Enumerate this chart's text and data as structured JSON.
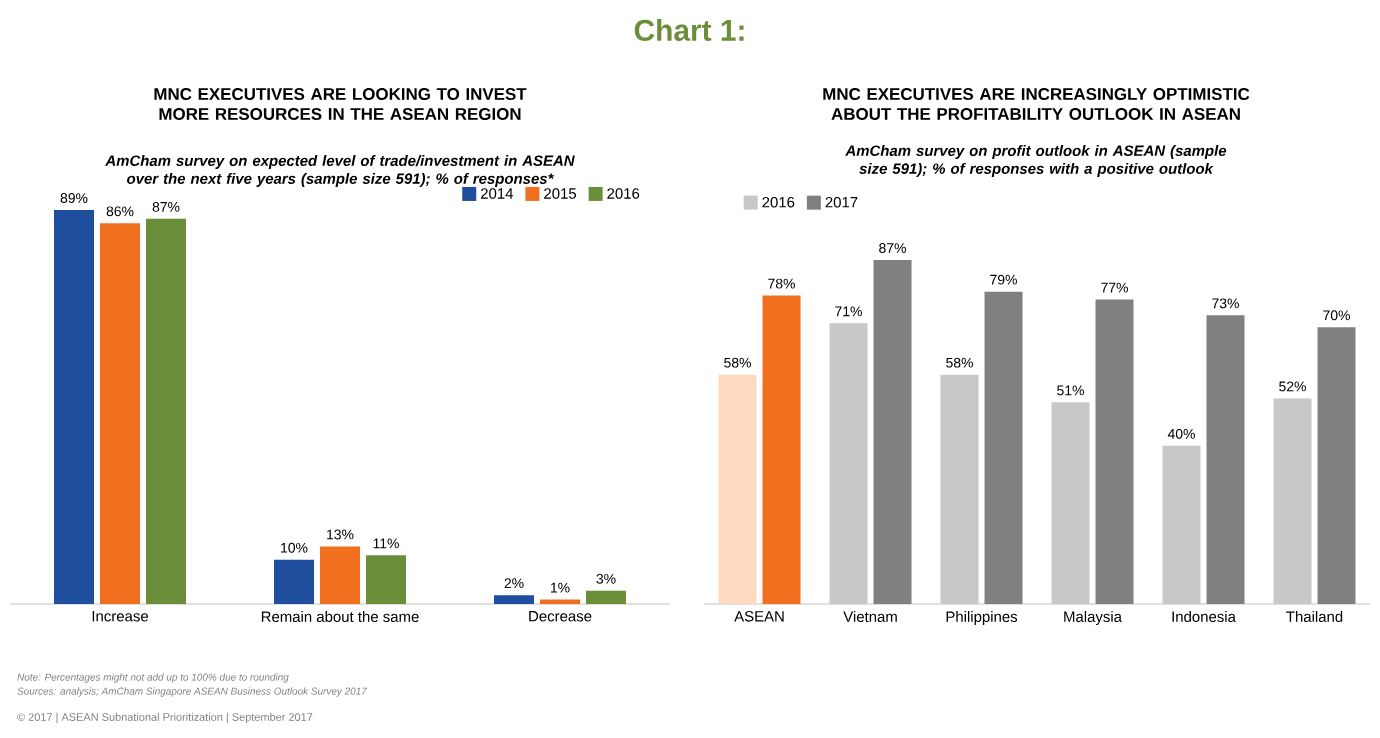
{
  "chart_data": [
    {
      "type": "bar",
      "title": "MNC EXECUTIVES ARE LOOKING TO INVEST MORE RESOURCES IN THE ASEAN REGION",
      "subtitle": "AmCham survey on expected level of trade/investment in ASEAN over the next five years (sample size 591); % of responses*",
      "categories": [
        "Increase",
        "Remain about the same",
        "Decrease"
      ],
      "series": [
        {
          "name": "2014",
          "color": "#1f4e9e",
          "values": [
            89,
            10,
            2
          ],
          "value_labels": [
            "89%",
            "10%",
            "2%"
          ]
        },
        {
          "name": "2015",
          "color": "#f07020",
          "values": [
            86,
            13,
            1
          ],
          "value_labels": [
            "86%",
            "13%",
            "1%"
          ]
        },
        {
          "name": "2016",
          "color": "#6b8e3a",
          "values": [
            87,
            11,
            3
          ],
          "value_labels": [
            "87%",
            "11%",
            "3%"
          ]
        }
      ],
      "legend": "top right",
      "annotations": [
        "Chart 1:",
        "Note: Percentages might not add up to 100% due to rounding",
        "Sources: analysis; AmCham Singapore ASEAN Business Outlook Survey 2017",
        "© 2017 | ASEAN Subnational Prioritization | September 2017"
      ]
    },
    {
      "type": "bar",
      "title": "MNC EXECUTIVES ARE INCREASINGLY OPTIMISTIC ABOUT THE PROFITABILITY OUTLOOK IN ASEAN",
      "subtitle": "AmCham survey on profit outlook in ASEAN (sample size 591); % of responses with a positive outlook",
      "categories": [
        "ASEAN",
        "Vietnam",
        "Philippines",
        "Malaysia",
        "Indonesia",
        "Thailand"
      ],
      "series": [
        {
          "name": "2016",
          "color": "#c8c8c8",
          "colors": [
            "#fcd9bf",
            "#c8c8c8",
            "#c8c8c8",
            "#c8c8c8",
            "#c8c8c8",
            "#c8c8c8"
          ],
          "values": [
            58,
            71,
            58,
            51,
            40,
            52
          ],
          "value_labels": [
            "58%",
            "71%",
            "58%",
            "51%",
            "40%",
            "52%"
          ]
        },
        {
          "name": "2017",
          "color": "#808080",
          "colors": [
            "#f07020",
            "#808080",
            "#808080",
            "#808080",
            "#808080",
            "#808080"
          ],
          "values": [
            78,
            87,
            79,
            77,
            73,
            70
          ],
          "value_labels": [
            "78%",
            "87%",
            "79%",
            "77%",
            "73%",
            "70%"
          ]
        }
      ],
      "legend": "top left"
    }
  ]
}
